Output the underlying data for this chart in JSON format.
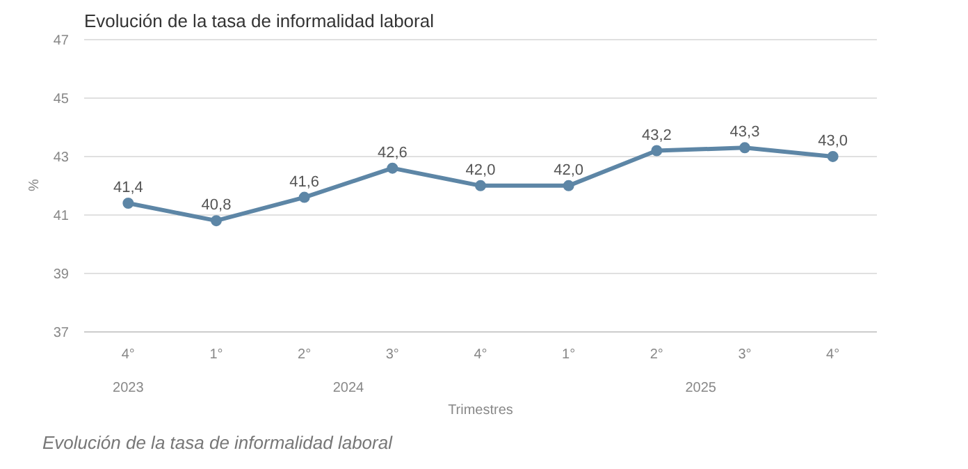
{
  "chart_data": {
    "type": "line",
    "title": "Evolución de la tasa de informalidad laboral",
    "xlabel": "Trimestres",
    "ylabel": "%",
    "categories": [
      "4°",
      "1°",
      "2°",
      "3°",
      "4°",
      "1°",
      "2°",
      "3°",
      "4°"
    ],
    "series": [
      {
        "color": "#5d86a6",
        "values": [
          41.4,
          40.8,
          41.6,
          42.6,
          42.0,
          42.0,
          43.2,
          43.3,
          43.0
        ],
        "value_labels": [
          "41,4",
          "40,8",
          "41,6",
          "42,6",
          "42,0",
          "42,0",
          "43,2",
          "43,3",
          "43,0"
        ]
      }
    ],
    "ylim": [
      37,
      47
    ],
    "yticks": [
      37,
      39,
      41,
      43,
      45,
      47
    ],
    "grid": "y",
    "marker": "circle",
    "line_style": "solid",
    "annotations": [
      "2023",
      "2024",
      "2025",
      "Evolución de la tasa de informalidad laboral"
    ]
  }
}
